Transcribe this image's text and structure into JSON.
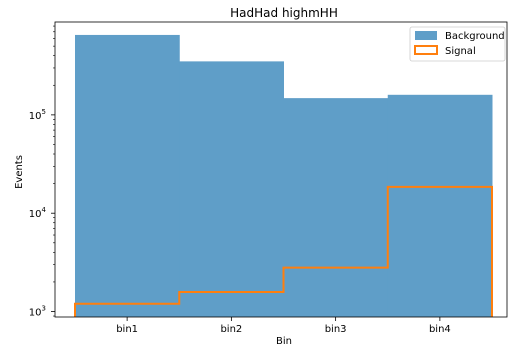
{
  "chart_data": {
    "type": "bar",
    "title": "HadHad highmHH",
    "xlabel": "Bin",
    "ylabel": "Events",
    "categories": [
      "bin1",
      "bin2",
      "bin3",
      "bin4"
    ],
    "yscale": "log",
    "ylim": [
      880,
      880000
    ],
    "y_tick_labels": [
      {
        "value": 1000,
        "base": "10",
        "exp": "3"
      },
      {
        "value": 10000,
        "base": "10",
        "exp": "4"
      },
      {
        "value": 100000,
        "base": "10",
        "exp": "5"
      }
    ],
    "series": [
      {
        "name": "Background",
        "style": "filled-step",
        "color": "#5f9ec8",
        "values": [
          650000,
          350000,
          148000,
          160000
        ]
      },
      {
        "name": "Signal",
        "style": "outline-step",
        "color": "#ff7f0e",
        "values": [
          1200,
          1580,
          2800,
          18500
        ]
      }
    ],
    "legend": {
      "placement": "top-right"
    },
    "grid": false
  }
}
